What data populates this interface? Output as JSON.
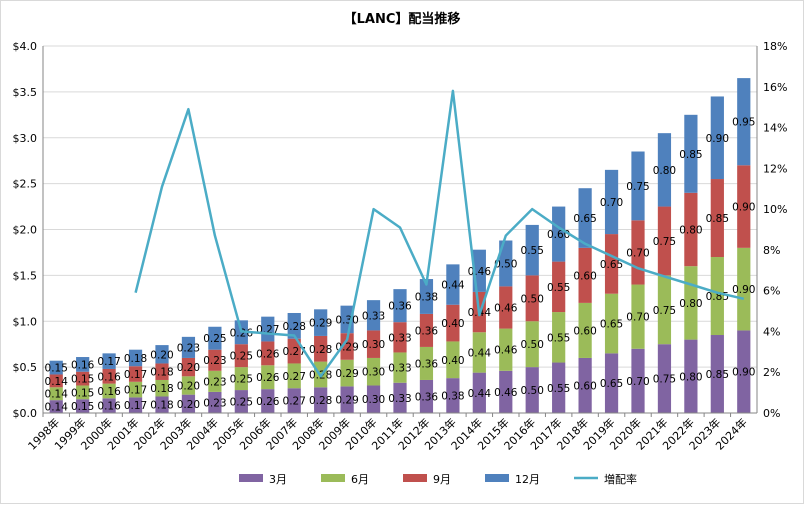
{
  "chart_data": {
    "type": "bar",
    "stacked": true,
    "title": "【LANC】配当推移",
    "xlabel": "",
    "ylabel": "",
    "categories": [
      "1998年",
      "1999年",
      "2000年",
      "2001年",
      "2002年",
      "2003年",
      "2004年",
      "2005年",
      "2006年",
      "2007年",
      "2008年",
      "2009年",
      "2010年",
      "2011年",
      "2012年",
      "2013年",
      "2014年",
      "2015年",
      "2016年",
      "2017年",
      "2018年",
      "2019年",
      "2020年",
      "2021年",
      "2022年",
      "2023年",
      "2024年"
    ],
    "series": [
      {
        "name": "3月",
        "color": "#8064a2",
        "values": [
          0.14,
          0.15,
          0.16,
          0.17,
          0.18,
          0.2,
          0.23,
          0.25,
          0.26,
          0.27,
          0.28,
          0.29,
          0.3,
          0.33,
          0.36,
          0.38,
          0.44,
          0.46,
          0.5,
          0.55,
          0.6,
          0.65,
          0.7,
          0.75,
          0.8,
          0.85,
          0.9
        ]
      },
      {
        "name": "6月",
        "color": "#9bbb59",
        "values": [
          0.14,
          0.15,
          0.16,
          0.17,
          0.18,
          0.2,
          0.23,
          0.25,
          0.26,
          0.27,
          0.28,
          0.29,
          0.3,
          0.33,
          0.36,
          0.4,
          0.44,
          0.46,
          0.5,
          0.55,
          0.6,
          0.65,
          0.7,
          0.75,
          0.8,
          0.85,
          0.9
        ]
      },
      {
        "name": "9月",
        "color": "#c0504d",
        "values": [
          0.14,
          0.15,
          0.16,
          0.17,
          0.18,
          0.2,
          0.23,
          0.25,
          0.26,
          0.27,
          0.28,
          0.29,
          0.3,
          0.33,
          0.36,
          0.4,
          0.44,
          0.46,
          0.5,
          0.55,
          0.6,
          0.65,
          0.7,
          0.75,
          0.8,
          0.85,
          0.9
        ]
      },
      {
        "name": "12月",
        "color": "#4f81bd",
        "values": [
          0.15,
          0.16,
          0.17,
          0.18,
          0.2,
          0.23,
          0.25,
          0.26,
          0.27,
          0.28,
          0.29,
          0.3,
          0.33,
          0.36,
          0.38,
          0.44,
          0.46,
          0.5,
          0.55,
          0.6,
          0.65,
          0.7,
          0.75,
          0.8,
          0.85,
          0.9,
          0.95
        ]
      }
    ],
    "line": {
      "name": "増配率",
      "color": "#4bacc6",
      "axis": "right",
      "values": [
        null,
        null,
        null,
        0.059,
        0.111,
        0.149,
        0.087,
        0.04,
        0.039,
        0.038,
        0.018,
        0.036,
        0.1,
        0.091,
        0.063,
        0.158,
        0.048,
        0.087,
        0.1,
        0.091,
        0.083,
        0.077,
        0.071,
        0.067,
        0.063,
        0.059,
        0.056
      ]
    },
    "ylim": [
      0,
      4.0
    ],
    "yticks": [
      "$0.0",
      "$0.5",
      "$1.0",
      "$1.5",
      "$2.0",
      "$2.5",
      "$3.0",
      "$3.5",
      "$4.0"
    ],
    "y2lim": [
      0,
      0.18
    ],
    "y2ticks": [
      "0%",
      "2%",
      "4%",
      "6%",
      "8%",
      "10%",
      "12%",
      "14%",
      "16%",
      "18%"
    ],
    "grid": true,
    "legend_position": "bottom"
  }
}
